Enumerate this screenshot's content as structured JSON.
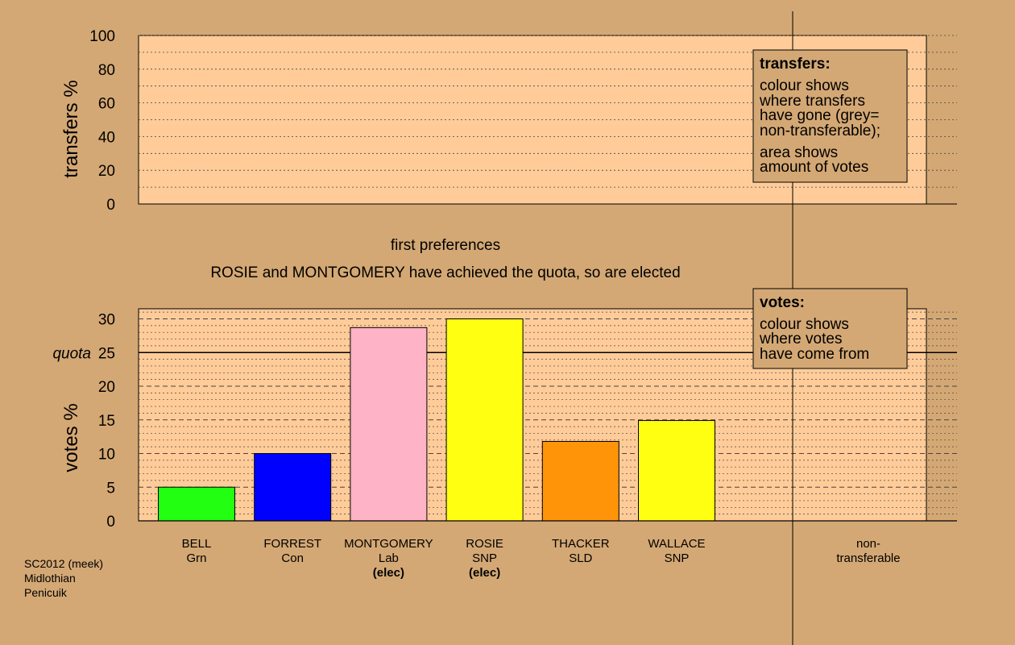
{
  "title": "first preferences",
  "subtitle": "ROSIE and MONTGOMERY have achieved the quota, so are elected",
  "chart_data": [
    {
      "type": "bar",
      "name": "transfers",
      "ylabel": "transfers %",
      "ylim": [
        0,
        100
      ],
      "yticks": [
        0,
        20,
        40,
        60,
        80,
        100
      ],
      "series": [],
      "legend": {
        "position": "top-right",
        "title": "transfers:",
        "lines": [
          "colour shows",
          "where transfers",
          "have gone (grey=",
          "non-transferable);",
          "area shows",
          "amount of votes"
        ]
      },
      "grid": true
    },
    {
      "type": "bar",
      "name": "votes",
      "ylabel": "votes %",
      "ylim": [
        0,
        31.5
      ],
      "yticks": [
        0,
        5,
        10,
        15,
        20,
        25,
        30
      ],
      "quota": 25,
      "quota_label": "quota",
      "categories": [
        {
          "name": "BELL",
          "party": "Grn",
          "value": 5.0,
          "color": "#22ff11",
          "elected": false
        },
        {
          "name": "FORREST",
          "party": "Con",
          "value": 10.0,
          "color": "#0000ff",
          "elected": false
        },
        {
          "name": "MONTGOMERY",
          "party": "Lab",
          "value": 28.7,
          "color": "#ffb3c6",
          "elected": true
        },
        {
          "name": "ROSIE",
          "party": "SNP",
          "value": 30.0,
          "color": "#ffff11",
          "elected": true
        },
        {
          "name": "THACKER",
          "party": "SLD",
          "value": 11.8,
          "color": "#ff9409",
          "elected": false
        },
        {
          "name": "WALLACE",
          "party": "SNP",
          "value": 14.9,
          "color": "#ffff11",
          "elected": false
        }
      ],
      "elected_label": "(elec)",
      "non_transferable_label": [
        "non-",
        "transferable"
      ],
      "legend": {
        "position": "top-right",
        "title": "votes:",
        "lines": [
          "colour shows",
          "where votes",
          "have come from"
        ]
      },
      "grid": true
    }
  ],
  "footer": [
    "SC2012 (meek)",
    "Midlothian",
    "Penicuik"
  ],
  "colors": {
    "background": "#d4a874",
    "plot_background": "#ffcc99",
    "legend_background": "#d4a874"
  }
}
